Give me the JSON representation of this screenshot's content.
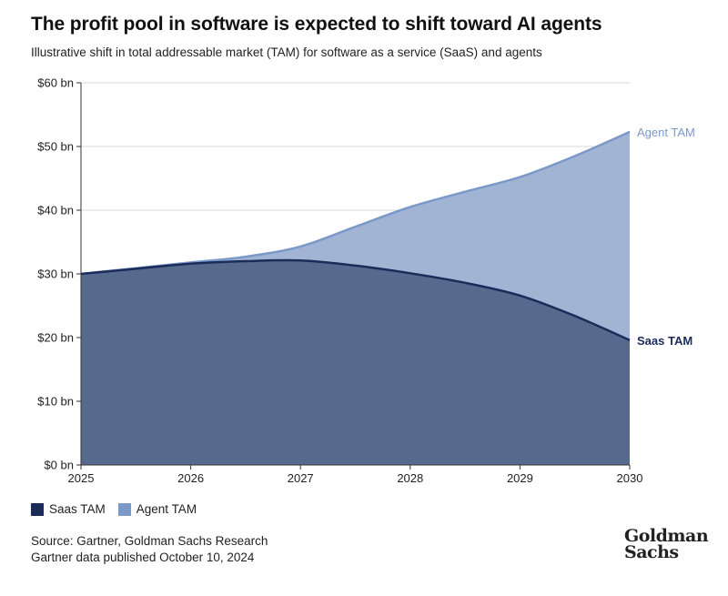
{
  "title": "The profit pool in software is expected to shift toward AI agents",
  "subtitle": "Illustrative shift in total addressable market (TAM) for software as a service (SaaS) and agents",
  "source_lines": [
    "Source: Gartner, Goldman Sachs Research",
    "Gartner data published October 10, 2024"
  ],
  "logo": [
    "Goldman",
    "Sachs"
  ],
  "colors": {
    "saas": "#566a8d",
    "saas_line": "#1b2c5a",
    "agent": "#a2b4d4",
    "agent_line": "#7b99c8",
    "grid": "#d9d9d9"
  },
  "chart_data": {
    "type": "area",
    "title": "The profit pool in software is expected to shift toward AI agents",
    "x": [
      2025,
      2026,
      2027,
      2028,
      2029,
      2030
    ],
    "xlim": [
      2025,
      2030
    ],
    "ylim": [
      0,
      60
    ],
    "y_ticks": [
      0,
      10,
      20,
      30,
      40,
      50,
      60
    ],
    "y_tick_labels": [
      "$0 bn",
      "$10 bn",
      "$20 bn",
      "$30 bn",
      "$40 bn",
      "$50 bn",
      "$60 bn"
    ],
    "x_tick_labels": [
      "2025",
      "2026",
      "2027",
      "2028",
      "2029",
      "2030"
    ],
    "series": [
      {
        "name": "Saas TAM",
        "end_label": "Saas TAM",
        "points": [
          [
            2025,
            30
          ],
          [
            2025.5,
            30.8
          ],
          [
            2026,
            31.6
          ],
          [
            2026.5,
            32
          ],
          [
            2027,
            32.1
          ],
          [
            2027.5,
            31.3
          ],
          [
            2028,
            30.1
          ],
          [
            2028.5,
            28.6
          ],
          [
            2029,
            26.6
          ],
          [
            2029.5,
            23.4
          ],
          [
            2030,
            19.6
          ]
        ]
      },
      {
        "name": "Agent TAM",
        "end_label": "Agent TAM",
        "points": [
          [
            2025,
            30
          ],
          [
            2025.5,
            30.9
          ],
          [
            2026,
            31.8
          ],
          [
            2026.5,
            32.7
          ],
          [
            2027,
            34.3
          ],
          [
            2027.5,
            37.4
          ],
          [
            2028,
            40.5
          ],
          [
            2028.5,
            42.9
          ],
          [
            2029,
            45.2
          ],
          [
            2029.5,
            48.5
          ],
          [
            2030,
            52.3
          ]
        ]
      }
    ],
    "legend": [
      "Saas TAM",
      "Agent TAM"
    ],
    "legend_position": "bottom-left"
  }
}
